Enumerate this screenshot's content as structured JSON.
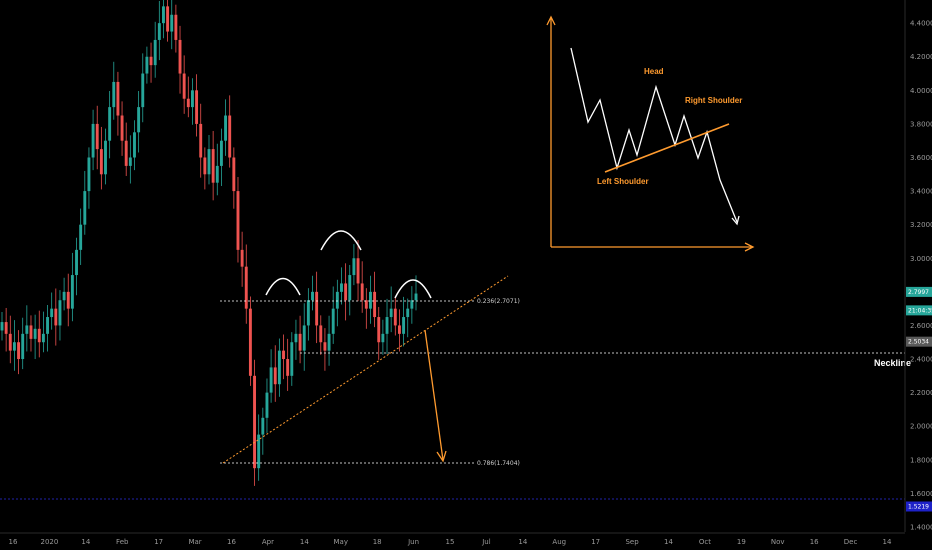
{
  "chart_data": {
    "type": "candlestick",
    "y_axis": {
      "ticks": [
        "4.4000",
        "4.2000",
        "4.0000",
        "3.8000",
        "3.6000",
        "3.4000",
        "3.2000",
        "3.0000",
        "2.8000",
        "2.6000",
        "2.4000",
        "2.2000",
        "2.0000",
        "1.8000",
        "1.6000",
        "1.4000"
      ],
      "range": [
        1.37,
        4.52
      ]
    },
    "x_axis": {
      "ticks": [
        "16",
        "2020",
        "14",
        "Feb",
        "17",
        "Mar",
        "16",
        "Apr",
        "14",
        "May",
        "18",
        "Jun",
        "15",
        "Jul",
        "14",
        "Aug",
        "17",
        "Sep",
        "14",
        "Oct",
        "19",
        "Nov",
        "16",
        "Dec",
        "14"
      ]
    },
    "candles_close_path": [
      2.62,
      2.55,
      2.45,
      2.5,
      2.4,
      2.55,
      2.6,
      2.52,
      2.58,
      2.5,
      2.55,
      2.65,
      2.7,
      2.6,
      2.75,
      2.8,
      2.7,
      2.9,
      3.05,
      3.2,
      3.4,
      3.6,
      3.8,
      3.65,
      3.5,
      3.7,
      3.9,
      4.05,
      3.85,
      3.7,
      3.55,
      3.6,
      3.75,
      3.9,
      4.1,
      4.2,
      4.15,
      4.3,
      4.4,
      4.5,
      4.35,
      4.45,
      4.3,
      4.1,
      3.95,
      3.9,
      4.0,
      3.8,
      3.6,
      3.5,
      3.65,
      3.45,
      3.55,
      3.7,
      3.85,
      3.6,
      3.4,
      3.05,
      2.95,
      2.7,
      2.3,
      1.75,
      1.95,
      2.05,
      2.2,
      2.35,
      2.25,
      2.45,
      2.4,
      2.3,
      2.5,
      2.55,
      2.45,
      2.6,
      2.75,
      2.8,
      2.6,
      2.5,
      2.45,
      2.55,
      2.7,
      2.8,
      2.85,
      2.75,
      2.9,
      3.0,
      2.85,
      2.75,
      2.7,
      2.8,
      2.65,
      2.5,
      2.55,
      2.65,
      2.7,
      2.6,
      2.55,
      2.65,
      2.7,
      2.75,
      2.79
    ],
    "levels": [
      {
        "label": "0.236(2.7071)",
        "value": 2.7071
      },
      {
        "label": "0.786(1.7404)",
        "value": 1.7404
      }
    ],
    "neckline": {
      "label": "Neckline",
      "value": 2.5
    },
    "price_tags": [
      {
        "text": "2.7997",
        "value": 2.7997,
        "color": "#26a69a"
      },
      {
        "text": "21:04:35",
        "value": 2.6897,
        "color": "#26a69a"
      },
      {
        "text": "2.5034",
        "value": 2.5034,
        "color": "#5a5a5a"
      },
      {
        "text": "1.5219",
        "value": 1.5219,
        "color": "#1e22c8"
      }
    ],
    "blue_line_value": 1.5219,
    "inset": {
      "labels": {
        "head": "Head",
        "left_shoulder": "Left Shoulder",
        "right_shoulder": "Right Shoulder"
      }
    },
    "colors": {
      "up": "#26a69a",
      "down": "#ef5350",
      "annotation": "#ff9b2f",
      "background": "#000000"
    }
  }
}
